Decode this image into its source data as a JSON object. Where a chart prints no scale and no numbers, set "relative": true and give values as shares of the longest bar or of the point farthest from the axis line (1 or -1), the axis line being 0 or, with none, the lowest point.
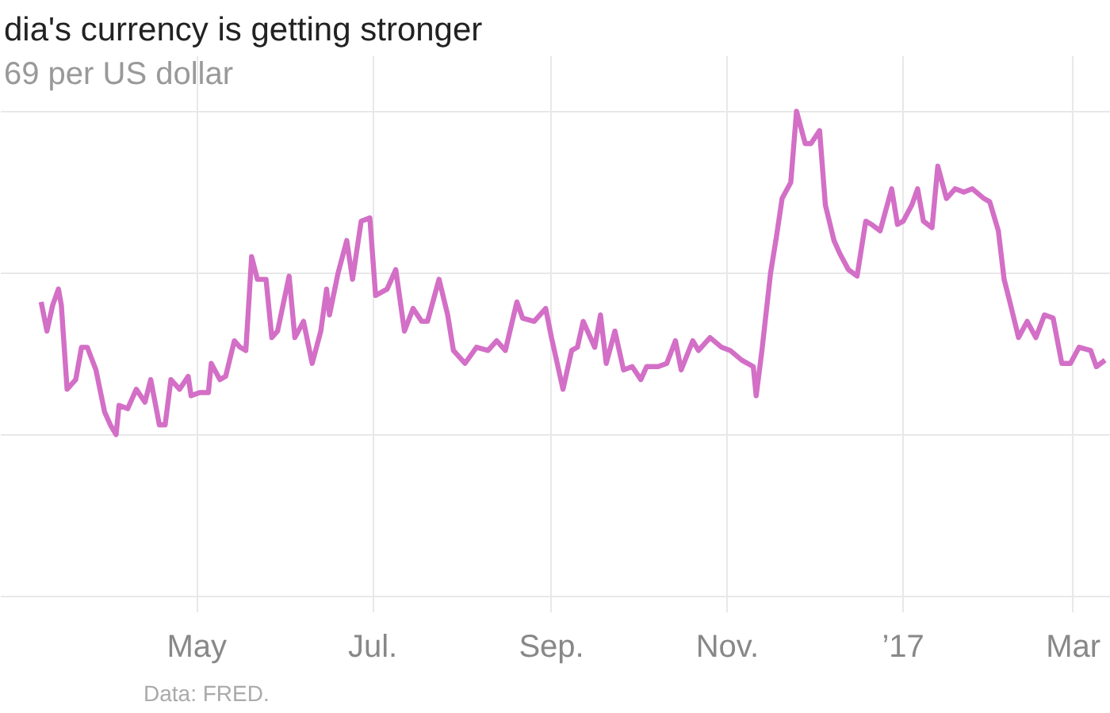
{
  "chart_data": {
    "type": "line",
    "title": "dia's currency is getting stronger",
    "relative": true,
    "x": [
      "2016-03-08",
      "2016-03-10",
      "2016-03-12",
      "2016-03-14",
      "2016-03-15",
      "2016-03-17",
      "2016-03-20",
      "2016-03-22",
      "2016-03-24",
      "2016-03-27",
      "2016-03-30",
      "2016-04-01",
      "2016-04-03",
      "2016-04-04",
      "2016-04-07",
      "2016-04-10",
      "2016-04-13",
      "2016-04-15",
      "2016-04-18",
      "2016-04-20",
      "2016-04-22",
      "2016-04-25",
      "2016-04-28",
      "2016-04-29",
      "2016-05-02",
      "2016-05-05",
      "2016-05-06",
      "2016-05-09",
      "2016-05-11",
      "2016-05-14",
      "2016-05-16",
      "2016-05-18",
      "2016-05-20",
      "2016-05-22",
      "2016-05-25",
      "2016-05-27",
      "2016-05-29",
      "2016-06-02",
      "2016-06-04",
      "2016-06-07",
      "2016-06-10",
      "2016-06-13",
      "2016-06-15",
      "2016-06-16",
      "2016-06-19",
      "2016-06-22",
      "2016-06-24",
      "2016-06-27",
      "2016-06-30",
      "2016-07-02",
      "2016-07-06",
      "2016-07-09",
      "2016-07-12",
      "2016-07-15",
      "2016-07-18",
      "2016-07-20",
      "2016-07-24",
      "2016-07-27",
      "2016-07-29",
      "2016-08-02",
      "2016-08-06",
      "2016-08-10",
      "2016-08-13",
      "2016-08-16",
      "2016-08-20",
      "2016-08-22",
      "2016-08-26",
      "2016-08-30",
      "2016-09-01",
      "2016-09-05",
      "2016-09-08",
      "2016-09-10",
      "2016-09-12",
      "2016-09-16",
      "2016-09-18",
      "2016-09-20",
      "2016-09-23",
      "2016-09-26",
      "2016-09-29",
      "2016-10-02",
      "2016-10-04",
      "2016-10-08",
      "2016-10-11",
      "2016-10-14",
      "2016-10-16",
      "2016-10-20",
      "2016-10-22",
      "2016-10-26",
      "2016-10-30",
      "2016-11-02",
      "2016-11-06",
      "2016-11-10",
      "2016-11-11",
      "2016-11-13",
      "2016-11-16",
      "2016-11-18",
      "2016-11-20",
      "2016-11-23",
      "2016-11-25",
      "2016-11-28",
      "2016-11-30",
      "2016-12-03",
      "2016-12-05",
      "2016-12-08",
      "2016-12-10",
      "2016-12-13",
      "2016-12-16",
      "2016-12-19",
      "2016-12-21",
      "2016-12-24",
      "2016-12-28",
      "2016-12-30",
      "2017-01-01",
      "2017-01-04",
      "2017-01-06",
      "2017-01-08",
      "2017-01-11",
      "2017-01-13",
      "2017-01-16",
      "2017-01-19",
      "2017-01-22",
      "2017-01-25",
      "2017-01-29",
      "2017-01-31",
      "2017-02-03",
      "2017-02-05",
      "2017-02-07",
      "2017-02-10",
      "2017-02-13",
      "2017-02-16",
      "2017-02-19",
      "2017-02-22",
      "2017-02-25",
      "2017-02-28",
      "2017-03-03",
      "2017-03-07",
      "2017-03-09",
      "2017-03-12"
    ],
    "series": [
      {
        "color": "#d36fc6",
        "values": [
          0.41,
          0.32,
          0.4,
          0.45,
          0.4,
          0.14,
          0.17,
          0.27,
          0.27,
          0.2,
          0.07,
          0.03,
          0,
          0.09,
          0.08,
          0.14,
          0.1,
          0.17,
          0.03,
          0.03,
          0.17,
          0.14,
          0.18,
          0.12,
          0.13,
          0.13,
          0.22,
          0.17,
          0.18,
          0.29,
          0.27,
          0.26,
          0.55,
          0.48,
          0.48,
          0.3,
          0.32,
          0.49,
          0.3,
          0.35,
          0.22,
          0.32,
          0.45,
          0.37,
          0.5,
          0.6,
          0.48,
          0.66,
          0.67,
          0.43,
          0.45,
          0.51,
          0.32,
          0.39,
          0.35,
          0.35,
          0.48,
          0.37,
          0.26,
          0.22,
          0.27,
          0.26,
          0.29,
          0.26,
          0.41,
          0.36,
          0.35,
          0.39,
          0.3,
          0.14,
          0.26,
          0.27,
          0.35,
          0.27,
          0.37,
          0.22,
          0.32,
          0.2,
          0.21,
          0.17,
          0.21,
          0.21,
          0.22,
          0.29,
          0.2,
          0.29,
          0.26,
          0.3,
          0.27,
          0.26,
          0.23,
          0.21,
          0.12,
          0.26,
          0.5,
          0.61,
          0.73,
          0.78,
          1,
          0.9,
          0.9,
          0.94,
          0.71,
          0.6,
          0.56,
          0.51,
          0.49,
          0.66,
          0.65,
          0.63,
          0.76,
          0.65,
          0.66,
          0.71,
          0.76,
          0.66,
          0.64,
          0.83,
          0.73,
          0.76,
          0.75,
          0.76,
          0.73,
          0.72,
          0.63,
          0.48,
          0.41,
          0.3,
          0.35,
          0.3,
          0.37,
          0.36,
          0.22,
          0.22,
          0.27,
          0.26,
          0.21,
          0.23
        ]
      }
    ],
    "xlim": [
      "2016-02-23",
      "2017-03-14"
    ],
    "xticks": [
      {
        "value": "2016-05-01",
        "label": "May"
      },
      {
        "value": "2016-07-01",
        "label": "Jul."
      },
      {
        "value": "2016-09-01",
        "label": "Sep."
      },
      {
        "value": "2016-11-01",
        "label": "Nov."
      },
      {
        "value": "2017-01-01",
        "label": "’17"
      },
      {
        "value": "2017-03-01",
        "label": "Mar"
      }
    ],
    "grid": true,
    "line_style": "solid",
    "marker": "none",
    "annotations": [
      "69 per US dollar",
      "Data: FRED."
    ]
  }
}
